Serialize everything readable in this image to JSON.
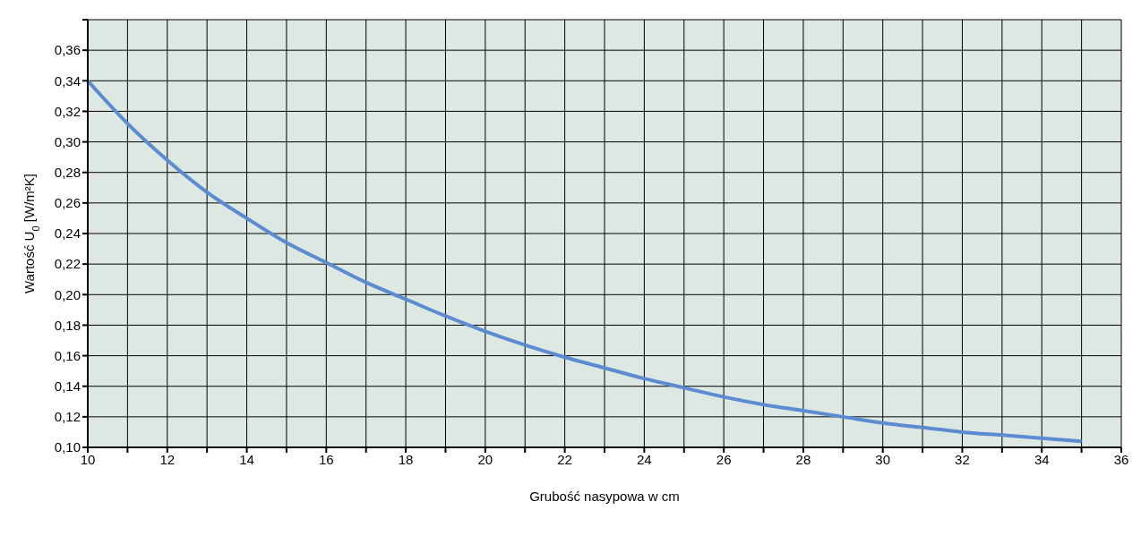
{
  "chart_data": {
    "type": "line",
    "xlabel": "Grubość nasypowa w cm",
    "ylabel": "Wartość U$_{0}$ [W/m²K]",
    "x": [
      10,
      11,
      12,
      13,
      14,
      15,
      16,
      17,
      18,
      19,
      20,
      21,
      22,
      23,
      24,
      25,
      26,
      27,
      28,
      29,
      30,
      31,
      32,
      33,
      34,
      35
    ],
    "series": [
      {
        "color": "#5b8bd0",
        "values": [
          0.34,
          0.312,
          0.288,
          0.267,
          0.25,
          0.234,
          0.221,
          0.208,
          0.197,
          0.186,
          0.176,
          0.167,
          0.159,
          0.152,
          0.145,
          0.139,
          0.133,
          0.128,
          0.124,
          0.12,
          0.116,
          0.113,
          0.11,
          0.108,
          0.106,
          0.104
        ]
      }
    ],
    "xlim": [
      10,
      36
    ],
    "xticks": [
      10,
      {
        "value": 11,
        "label": null
      },
      12,
      {
        "value": 13,
        "label": null
      },
      14,
      {
        "value": 15,
        "label": null
      },
      16,
      {
        "value": 17,
        "label": null
      },
      18,
      {
        "value": 19,
        "label": null
      },
      20,
      {
        "value": 21,
        "label": null
      },
      22,
      {
        "value": 23,
        "label": null
      },
      24,
      {
        "value": 25,
        "label": null
      },
      26,
      {
        "value": 27,
        "label": null
      },
      28,
      {
        "value": 29,
        "label": null
      },
      30,
      {
        "value": 31,
        "label": null
      },
      32,
      {
        "value": 33,
        "label": null
      },
      34,
      {
        "value": 35,
        "label": null
      },
      36
    ],
    "ylim": [
      0.1,
      0.38
    ],
    "yticks": [
      {
        "value": 0.1,
        "label": "0,10"
      },
      {
        "value": 0.12,
        "label": "0,12"
      },
      {
        "value": 0.14,
        "label": "0,14"
      },
      {
        "value": 0.16,
        "label": "0,16"
      },
      {
        "value": 0.18,
        "label": "0,18"
      },
      {
        "value": 0.2,
        "label": "0,20"
      },
      {
        "value": 0.22,
        "label": "0,22"
      },
      {
        "value": 0.24,
        "label": "0,24"
      },
      {
        "value": 0.26,
        "label": "0,26"
      },
      {
        "value": 0.28,
        "label": "0,28"
      },
      {
        "value": 0.3,
        "label": "0,30"
      },
      {
        "value": 0.32,
        "label": "0,32"
      },
      {
        "value": 0.34,
        "label": "0,34"
      },
      {
        "value": 0.36,
        "label": "0,36"
      },
      {
        "value": 0.38,
        "label": null
      }
    ],
    "grid": true,
    "legend": false
  }
}
